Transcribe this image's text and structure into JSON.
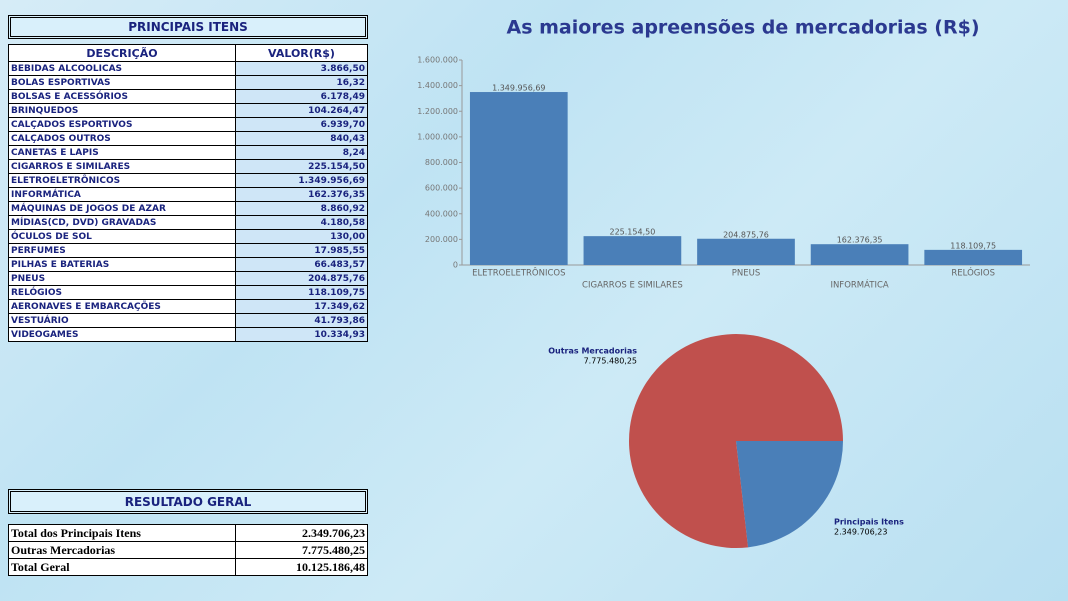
{
  "items_table": {
    "title": "PRINCIPAIS ITENS",
    "columns": [
      "DESCRIÇÃO",
      "VALOR(R$)"
    ],
    "rows": [
      [
        "BEBIDAS ALCOOLICAS",
        "3.866,50"
      ],
      [
        "BOLAS ESPORTIVAS",
        "16,32"
      ],
      [
        "BOLSAS E ACESSÓRIOS",
        "6.178,49"
      ],
      [
        "BRINQUEDOS",
        "104.264,47"
      ],
      [
        "CALÇADOS ESPORTIVOS",
        "6.939,70"
      ],
      [
        "CALÇADOS OUTROS",
        "840,43"
      ],
      [
        "CANETAS E LAPIS",
        "8,24"
      ],
      [
        "CIGARROS E SIMILARES",
        "225.154,50"
      ],
      [
        "ELETROELETRÔNICOS",
        "1.349.956,69"
      ],
      [
        "INFORMÁTICA",
        "162.376,35"
      ],
      [
        "MÁQUINAS DE JOGOS DE AZAR",
        "8.860,92"
      ],
      [
        "MÍDIAS(CD, DVD) GRAVADAS",
        "4.180,58"
      ],
      [
        "ÓCULOS DE SOL",
        "130,00"
      ],
      [
        "PERFUMES",
        "17.985,55"
      ],
      [
        "PILHAS E BATERIAS",
        "66.483,57"
      ],
      [
        "PNEUS",
        "204.875,76"
      ],
      [
        "RELÓGIOS",
        "118.109,75"
      ],
      [
        "AERONAVES E EMBARCAÇÕES",
        "17.349,62"
      ],
      [
        "VESTUÁRIO",
        "41.793,86"
      ],
      [
        "VIDEOGAMES",
        "10.334,93"
      ]
    ]
  },
  "summary_table": {
    "title": "RESULTADO GERAL",
    "rows": [
      [
        "Total dos Principais Itens",
        "2.349.706,23"
      ],
      [
        "Outras Mercadorias",
        "7.775.480,25"
      ],
      [
        "Total Geral",
        "10.125.186,48"
      ]
    ]
  },
  "chart_data": [
    {
      "type": "bar",
      "title": "As maiores apreensões de mercadorias (R$)",
      "categories": [
        "ELETROELETRÔNICOS",
        "CIGARROS E SIMILARES",
        "PNEUS",
        "INFORMÁTICA",
        "RELÓGIOS"
      ],
      "values": [
        1349956.69,
        225154.5,
        204875.76,
        162376.35,
        118109.75
      ],
      "value_labels": [
        "1.349.956,69",
        "225.154,50",
        "204.875,76",
        "162.376,35",
        "118.109,75"
      ],
      "color": "#4a7fb8",
      "ylim": [
        0,
        1600000
      ],
      "yticks": [
        0,
        {
          "value": 200000,
          "label": "200.000"
        },
        {
          "value": 400000,
          "label": "400.000"
        },
        {
          "value": 600000,
          "label": "600.000"
        },
        {
          "value": 800000,
          "label": "800.000"
        },
        {
          "value": 1000000,
          "label": "1.000.000"
        },
        {
          "value": 1200000,
          "label": "1.200.000"
        },
        {
          "value": 1400000,
          "label": "1.400.000"
        },
        {
          "value": 1600000,
          "label": "1.600.000"
        }
      ]
    },
    {
      "type": "pie",
      "categories": [
        "Outras Mercadorias",
        "Principais Itens"
      ],
      "values": [
        7775480.25,
        2349706.23
      ],
      "value_labels": [
        "7.775.480,25",
        "2.349.706,23"
      ],
      "colors": [
        "#c0504d",
        "#4a7fb8"
      ]
    }
  ]
}
